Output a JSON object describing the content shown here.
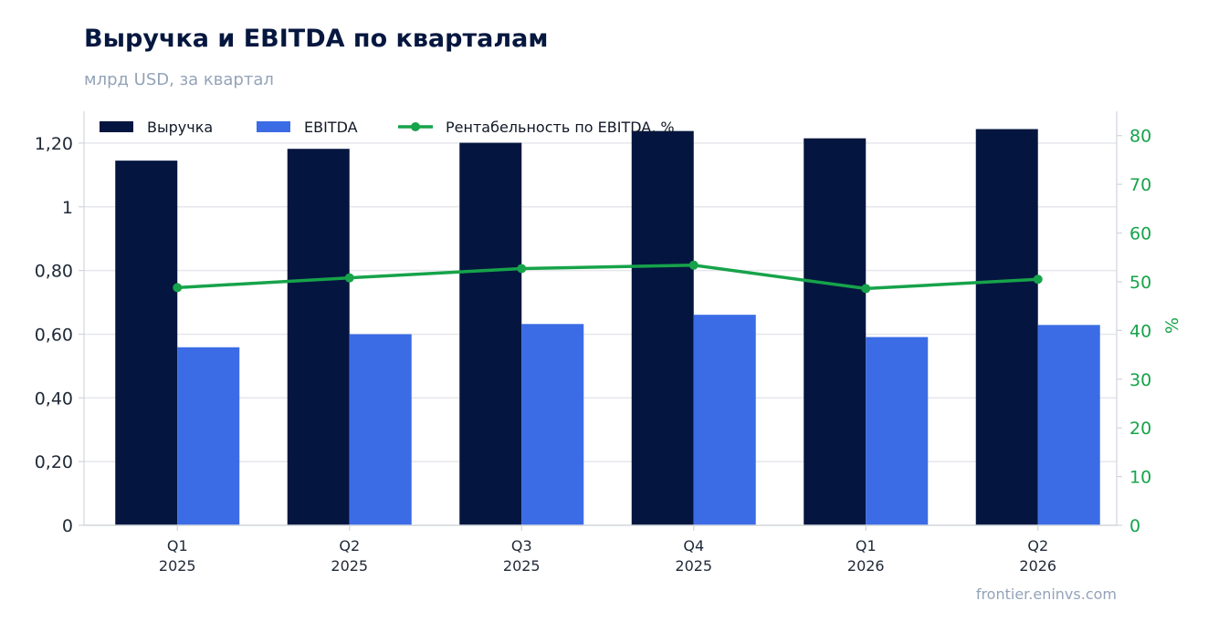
{
  "header": {
    "title": "Выручка и EBITDA по кварталам",
    "subtitle": "млрд USD, за квартал"
  },
  "footer": {
    "source": "frontier.eninvs.com"
  },
  "colors": {
    "revenue": "#04163f",
    "ebitda": "#3b6ce6",
    "margin": "#16a34a",
    "grid": "#e5e7eb",
    "axis": "#d1d5db"
  },
  "chart_data": {
    "type": "bar",
    "title": "Выручка и EBITDA по кварталам",
    "subtitle": "млрд USD, за квартал",
    "categories": [
      [
        "Q1",
        "2025"
      ],
      [
        "Q2",
        "2025"
      ],
      [
        "Q3",
        "2025"
      ],
      [
        "Q4",
        "2025"
      ],
      [
        "Q1",
        "2026"
      ],
      [
        "Q2",
        "2026"
      ]
    ],
    "series": [
      {
        "name": "Выручка",
        "type": "bar",
        "axis": "left",
        "values": [
          1.145,
          1.182,
          1.201,
          1.238,
          1.215,
          1.244
        ]
      },
      {
        "name": "EBITDA",
        "type": "bar",
        "axis": "left",
        "values": [
          0.559,
          0.6,
          0.632,
          0.661,
          0.591,
          0.629
        ]
      },
      {
        "name": "Рентабельность по EBITDA, %",
        "type": "line",
        "axis": "right",
        "values": [
          48.8,
          50.8,
          52.7,
          53.4,
          48.6,
          50.5
        ]
      }
    ],
    "ylim_left": [
      0,
      1.3
    ],
    "yticks_left": [
      {
        "value": 0,
        "label": "0"
      },
      {
        "value": 0.2,
        "label": "0,20"
      },
      {
        "value": 0.4,
        "label": "0,40"
      },
      {
        "value": 0.6,
        "label": "0,60"
      },
      {
        "value": 0.8,
        "label": "0,80"
      },
      {
        "value": 1.0,
        "label": "1"
      },
      {
        "value": 1.2,
        "label": "1,20"
      }
    ],
    "ylim_right": [
      0,
      85
    ],
    "yticks_right": [
      0,
      10,
      20,
      30,
      40,
      50,
      60,
      70,
      80
    ],
    "ylabel_right": "%",
    "grid": true,
    "legend_position": "top-left"
  }
}
